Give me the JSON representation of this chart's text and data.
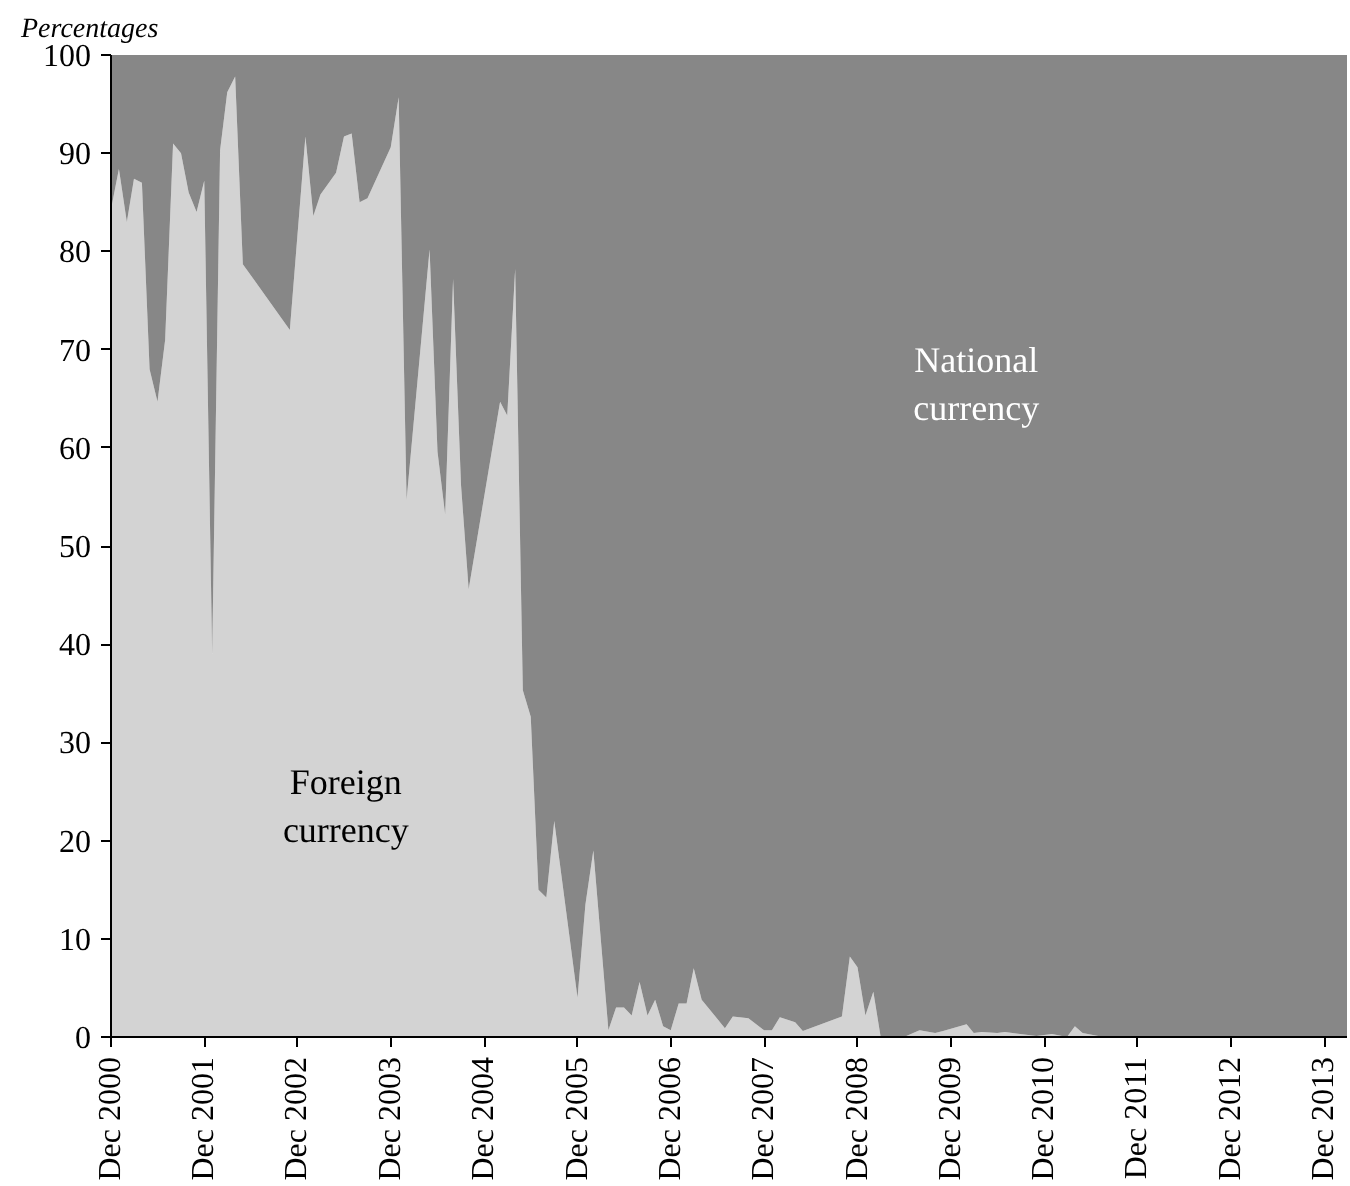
{
  "chart_data": {
    "type": "area",
    "stacked": true,
    "ylabel": "Percentages",
    "x": [
      "2000-12",
      "2001-01",
      "2001-02",
      "2001-03",
      "2001-04",
      "2001-05",
      "2001-06",
      "2001-07",
      "2001-08",
      "2001-09",
      "2001-10",
      "2001-11",
      "2001-12",
      "2002-01",
      "2002-02",
      "2002-03",
      "2002-04",
      "2002-05",
      "2002-11",
      "2003-01",
      "2003-02",
      "2003-03",
      "2003-05",
      "2003-06",
      "2003-07",
      "2003-08",
      "2003-09",
      "2003-12",
      "2004-01",
      "2004-02",
      "2004-05",
      "2004-06",
      "2004-07",
      "2004-08",
      "2004-09",
      "2004-10",
      "2005-02",
      "2005-03",
      "2005-04",
      "2005-05",
      "2005-06",
      "2005-07",
      "2005-08",
      "2005-09",
      "2005-12",
      "2006-01",
      "2006-02",
      "2006-04",
      "2006-05",
      "2006-06",
      "2006-07",
      "2006-08",
      "2006-09",
      "2006-10",
      "2006-11",
      "2006-12",
      "2007-01",
      "2007-02",
      "2007-03",
      "2007-04",
      "2007-07",
      "2007-08",
      "2007-10",
      "2007-12",
      "2008-01",
      "2008-02",
      "2008-04",
      "2008-05",
      "2008-10",
      "2008-11",
      "2008-12",
      "2009-01",
      "2009-02",
      "2009-03",
      "2009-04",
      "2009-06",
      "2009-08",
      "2009-10",
      "2009-11",
      "2010-02",
      "2010-03",
      "2010-04",
      "2010-06",
      "2010-07",
      "2010-11",
      "2011-01",
      "2011-03",
      "2011-04",
      "2011-05",
      "2011-07",
      "2011-08",
      "2014-03"
    ],
    "series": [
      {
        "name": "Foreign currency",
        "color": "#d3d3d3",
        "values": [
          84.3,
          88.4,
          83,
          87.4,
          87,
          68,
          64.7,
          71,
          91,
          90,
          86,
          84,
          87.2,
          39,
          90.3,
          96.2,
          97.8,
          78.7,
          72,
          91.7,
          83.6,
          85.8,
          88,
          91.7,
          92,
          85,
          85.4,
          90.6,
          95.7,
          54.7,
          80.2,
          59.6,
          53.2,
          77.2,
          56.2,
          45.6,
          64.7,
          63.3,
          78.2,
          35.3,
          32.6,
          15,
          14.2,
          22,
          4,
          13.5,
          19,
          0.7,
          3,
          3,
          2.2,
          5.6,
          2.2,
          3.8,
          1.1,
          0.7,
          3.4,
          3.4,
          7,
          3.8,
          0.9,
          2.1,
          1.9,
          0.7,
          0.7,
          2,
          1.5,
          0.6,
          2.1,
          8.2,
          7.1,
          2.2,
          4.6,
          0.1,
          0,
          0,
          0.7,
          0.4,
          0.6,
          1.3,
          0.4,
          0.5,
          0.4,
          0.5,
          0.1,
          0.3,
          0,
          1.1,
          0.4,
          0.1,
          0,
          0
        ]
      },
      {
        "name": "National currency",
        "color": "#878787",
        "values": [
          15.7,
          11.6,
          17,
          12.6,
          13,
          32,
          35.3,
          29,
          9,
          10,
          14,
          16,
          12.8,
          61,
          9.7,
          3.8,
          2.2,
          21.3,
          28,
          8.3,
          16.4,
          14.2,
          12,
          8.3,
          8,
          15,
          14.6,
          9.4,
          4.3,
          45.3,
          19.8,
          40.4,
          46.8,
          22.8,
          43.8,
          54.4,
          35.3,
          36.7,
          21.8,
          64.7,
          67.4,
          85,
          85.8,
          78,
          96,
          86.5,
          81,
          99.3,
          97,
          97,
          97.8,
          94.4,
          97.8,
          96.2,
          98.9,
          99.3,
          96.6,
          96.6,
          93,
          96.2,
          99.1,
          97.9,
          98.1,
          99.3,
          99.3,
          98,
          98.5,
          99.4,
          97.9,
          91.8,
          92.9,
          97.8,
          95.4,
          99.9,
          100,
          100,
          99.3,
          99.6,
          99.4,
          98.7,
          99.6,
          99.5,
          99.6,
          99.5,
          99.9,
          99.7,
          100,
          98.9,
          99.6,
          99.9,
          100,
          100
        ]
      }
    ],
    "xlim": [
      "2000-12",
      "2014-03"
    ],
    "xticks": [
      {
        "value": "2000-12",
        "label": "Dec 2000"
      },
      {
        "value": "2001-12",
        "label": "Dec 2001"
      },
      {
        "value": "2002-12",
        "label": "Dec 2002"
      },
      {
        "value": "2003-12",
        "label": "Dec 2003"
      },
      {
        "value": "2004-12",
        "label": "Dec 2004"
      },
      {
        "value": "2005-12",
        "label": "Dec 2005"
      },
      {
        "value": "2006-12",
        "label": "Dec 2006"
      },
      {
        "value": "2007-12",
        "label": "Dec 2007"
      },
      {
        "value": "2008-12",
        "label": "Dec 2008"
      },
      {
        "value": "2009-12",
        "label": "Dec 2009"
      },
      {
        "value": "2010-12",
        "label": "Dec 2010"
      },
      {
        "value": "2011-12",
        "label": "Dec 2011"
      },
      {
        "value": "2012-12",
        "label": "Dec 2012"
      },
      {
        "value": "2013-12",
        "label": "Dec 2013"
      }
    ],
    "ylim": [
      0,
      100
    ],
    "yticks": [
      0,
      10,
      20,
      30,
      40,
      50,
      60,
      70,
      80,
      90,
      100
    ],
    "grid": false
  }
}
